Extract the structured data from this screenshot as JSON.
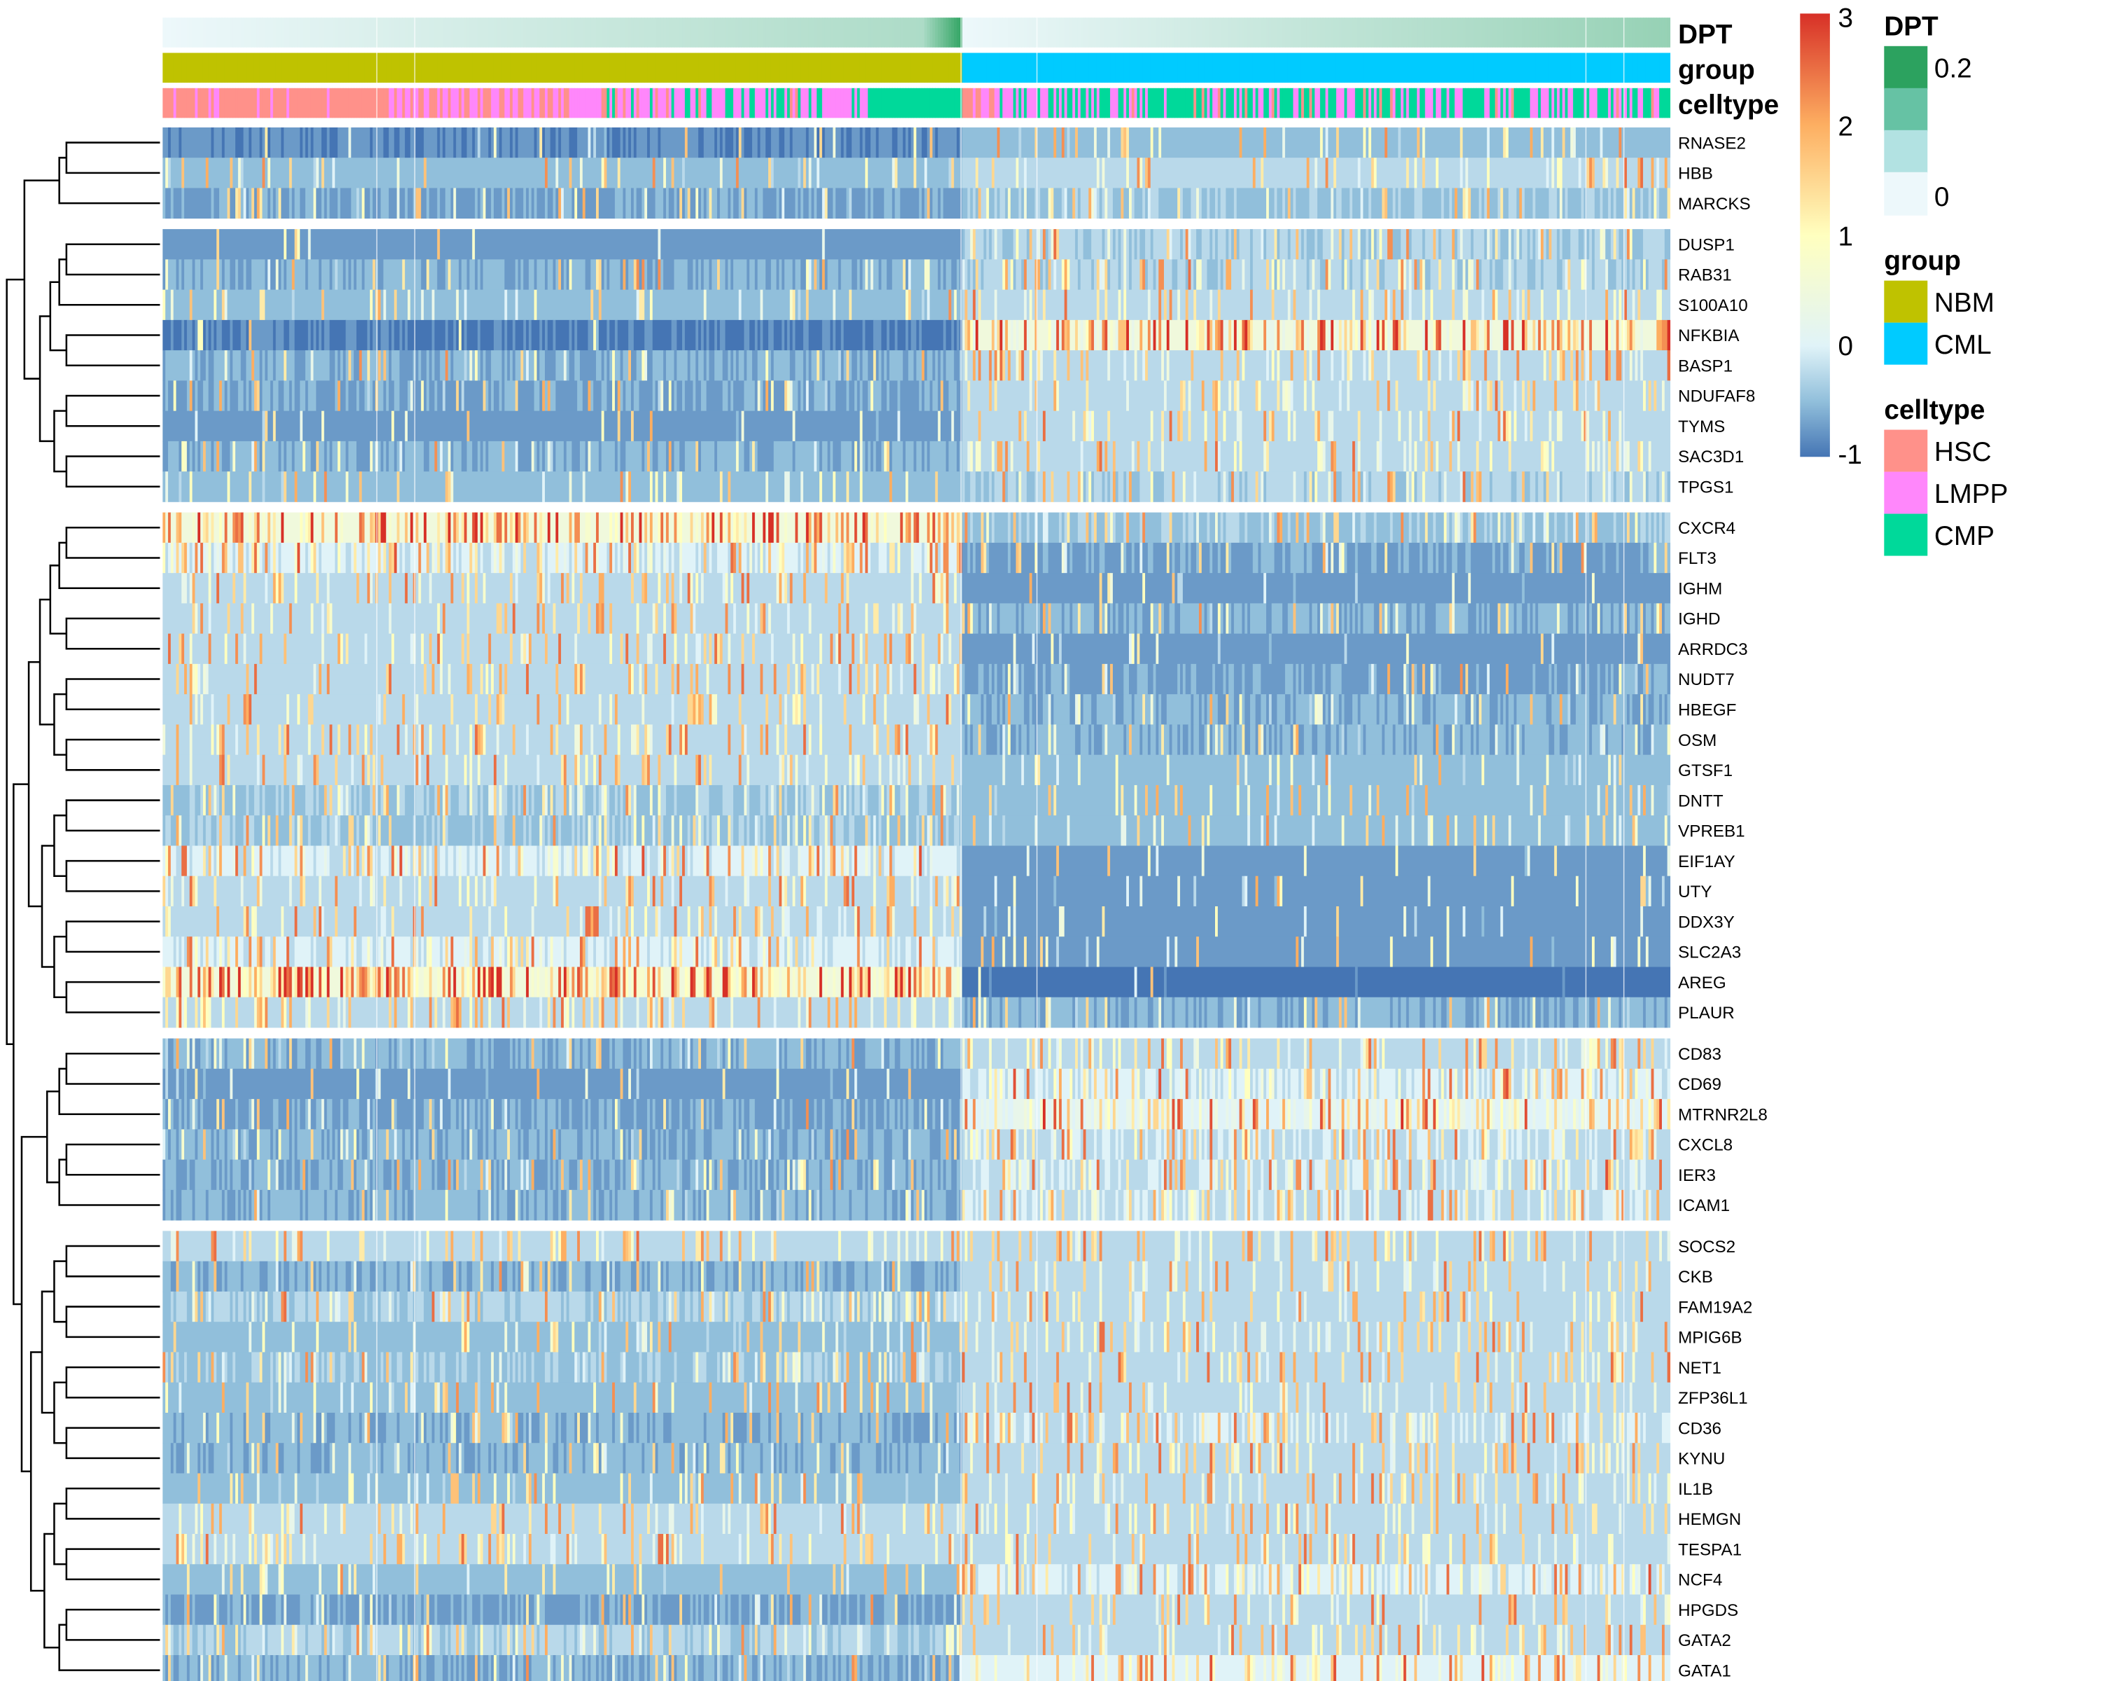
{
  "chart_data": {
    "type": "heatmap",
    "column_annotations": [
      {
        "name": "DPT",
        "legend_title": "DPT",
        "type": "continuous",
        "legend_labels": [
          "0.2",
          "0"
        ],
        "colors": [
          "#2ca25f",
          "#66c2a4",
          "#b2e2e2",
          "#edf8fb"
        ]
      },
      {
        "name": "group",
        "legend_title": "group",
        "levels": [
          {
            "label": "NBM",
            "color": "#bfc200"
          },
          {
            "label": "CML",
            "color": "#00cbff"
          }
        ]
      },
      {
        "name": "celltype",
        "legend_title": "celltype",
        "levels": [
          {
            "label": "HSC",
            "color": "#ff918a"
          },
          {
            "label": "LMPP",
            "color": "#ff87fb"
          },
          {
            "label": "CMP",
            "color": "#00d99a"
          }
        ]
      }
    ],
    "color_scale": {
      "ticks": [
        "3",
        "2",
        "1",
        "0",
        "-1"
      ],
      "range": [
        -1,
        3
      ],
      "stops": [
        {
          "value": -1,
          "color": "#4575b4"
        },
        {
          "value": -0.5,
          "color": "#91bfdb"
        },
        {
          "value": 0,
          "color": "#e0f3f8"
        },
        {
          "value": 1,
          "color": "#ffffbf"
        },
        {
          "value": 2,
          "color": "#fdae61"
        },
        {
          "value": 3,
          "color": "#d73027"
        }
      ]
    },
    "column_split": [
      "NBM",
      "CML"
    ],
    "row_clusters": [
      [
        {
          "gene": "RNASE2",
          "approx_mean": {
            "NBM": -0.85,
            "CML": -0.5
          }
        },
        {
          "gene": "HBB",
          "approx_mean": {
            "NBM": -0.55,
            "CML": -0.3
          }
        },
        {
          "gene": "MARCKS",
          "approx_mean": {
            "NBM": -0.65,
            "CML": -0.4
          }
        }
      ],
      [
        {
          "gene": "DUSP1",
          "approx_mean": {
            "NBM": -0.75,
            "CML": -0.35
          }
        },
        {
          "gene": "RAB31",
          "approx_mean": {
            "NBM": -0.6,
            "CML": -0.35
          }
        },
        {
          "gene": "S100A10",
          "approx_mean": {
            "NBM": -0.5,
            "CML": -0.25
          }
        },
        {
          "gene": "NFKBIA",
          "approx_mean": {
            "NBM": -0.9,
            "CML": 0.4
          }
        },
        {
          "gene": "BASP1",
          "approx_mean": {
            "NBM": -0.6,
            "CML": -0.2
          }
        },
        {
          "gene": "NDUFAF8",
          "approx_mean": {
            "NBM": -0.65,
            "CML": -0.3
          }
        },
        {
          "gene": "TYMS",
          "approx_mean": {
            "NBM": -0.75,
            "CML": -0.3
          }
        },
        {
          "gene": "SAC3D1",
          "approx_mean": {
            "NBM": -0.6,
            "CML": -0.3
          }
        },
        {
          "gene": "TPGS1",
          "approx_mean": {
            "NBM": -0.55,
            "CML": -0.35
          }
        }
      ],
      [
        {
          "gene": "CXCR4",
          "approx_mean": {
            "NBM": 0.5,
            "CML": -0.4
          }
        },
        {
          "gene": "FLT3",
          "approx_mean": {
            "NBM": -0.1,
            "CML": -0.65
          }
        },
        {
          "gene": "IGHM",
          "approx_mean": {
            "NBM": -0.2,
            "CML": -0.7
          }
        },
        {
          "gene": "IGHD",
          "approx_mean": {
            "NBM": -0.3,
            "CML": -0.6
          }
        },
        {
          "gene": "ARRDC3",
          "approx_mean": {
            "NBM": -0.2,
            "CML": -0.7
          }
        },
        {
          "gene": "NUDT7",
          "approx_mean": {
            "NBM": -0.2,
            "CML": -0.65
          }
        },
        {
          "gene": "HBEGF",
          "approx_mean": {
            "NBM": -0.3,
            "CML": -0.6
          }
        },
        {
          "gene": "OSM",
          "approx_mean": {
            "NBM": -0.25,
            "CML": -0.6
          }
        },
        {
          "gene": "GTSF1",
          "approx_mean": {
            "NBM": -0.3,
            "CML": -0.55
          }
        },
        {
          "gene": "DNTT",
          "approx_mean": {
            "NBM": -0.4,
            "CML": -0.5
          }
        },
        {
          "gene": "VPREB1",
          "approx_mean": {
            "NBM": -0.4,
            "CML": -0.5
          }
        },
        {
          "gene": "EIF1AY",
          "approx_mean": {
            "NBM": -0.1,
            "CML": -0.8
          }
        },
        {
          "gene": "UTY",
          "approx_mean": {
            "NBM": -0.2,
            "CML": -0.7
          }
        },
        {
          "gene": "DDX3Y",
          "approx_mean": {
            "NBM": -0.2,
            "CML": -0.7
          }
        },
        {
          "gene": "SLC2A3",
          "approx_mean": {
            "NBM": -0.1,
            "CML": -0.7
          }
        },
        {
          "gene": "AREG",
          "approx_mean": {
            "NBM": 0.6,
            "CML": -0.95
          }
        },
        {
          "gene": "PLAUR",
          "approx_mean": {
            "NBM": -0.2,
            "CML": -0.6
          }
        }
      ],
      [
        {
          "gene": "CD83",
          "approx_mean": {
            "NBM": -0.6,
            "CML": -0.2
          }
        },
        {
          "gene": "CD69",
          "approx_mean": {
            "NBM": -0.7,
            "CML": -0.1
          }
        },
        {
          "gene": "MTRNR2L8",
          "approx_mean": {
            "NBM": -0.65,
            "CML": 0.1
          }
        },
        {
          "gene": "CXCL8",
          "approx_mean": {
            "NBM": -0.6,
            "CML": -0.15
          }
        },
        {
          "gene": "IER3",
          "approx_mean": {
            "NBM": -0.6,
            "CML": -0.15
          }
        },
        {
          "gene": "ICAM1",
          "approx_mean": {
            "NBM": -0.6,
            "CML": -0.15
          }
        }
      ],
      [
        {
          "gene": "SOCS2",
          "approx_mean": {
            "NBM": -0.3,
            "CML": -0.3
          }
        },
        {
          "gene": "CKB",
          "approx_mean": {
            "NBM": -0.6,
            "CML": -0.3
          }
        },
        {
          "gene": "FAM19A2",
          "approx_mean": {
            "NBM": -0.35,
            "CML": -0.25
          }
        },
        {
          "gene": "MPIG6B",
          "approx_mean": {
            "NBM": -0.45,
            "CML": -0.25
          }
        },
        {
          "gene": "NET1",
          "approx_mean": {
            "NBM": -0.4,
            "CML": -0.25
          }
        },
        {
          "gene": "ZFP36L1",
          "approx_mean": {
            "NBM": -0.45,
            "CML": -0.3
          }
        },
        {
          "gene": "CD36",
          "approx_mean": {
            "NBM": -0.6,
            "CML": -0.15
          }
        },
        {
          "gene": "KYNU",
          "approx_mean": {
            "NBM": -0.6,
            "CML": -0.25
          }
        },
        {
          "gene": "IL1B",
          "approx_mean": {
            "NBM": -0.45,
            "CML": -0.3
          }
        },
        {
          "gene": "HEMGN",
          "approx_mean": {
            "NBM": -0.3,
            "CML": -0.25
          }
        },
        {
          "gene": "TESPA1",
          "approx_mean": {
            "NBM": -0.25,
            "CML": -0.25
          }
        },
        {
          "gene": "NCF4",
          "approx_mean": {
            "NBM": -0.55,
            "CML": -0.1
          }
        },
        {
          "gene": "HPGDS",
          "approx_mean": {
            "NBM": -0.65,
            "CML": -0.25
          }
        },
        {
          "gene": "GATA2",
          "approx_mean": {
            "NBM": -0.35,
            "CML": -0.25
          }
        },
        {
          "gene": "GATA1",
          "approx_mean": {
            "NBM": -0.6,
            "CML": 0.0
          }
        }
      ]
    ]
  }
}
